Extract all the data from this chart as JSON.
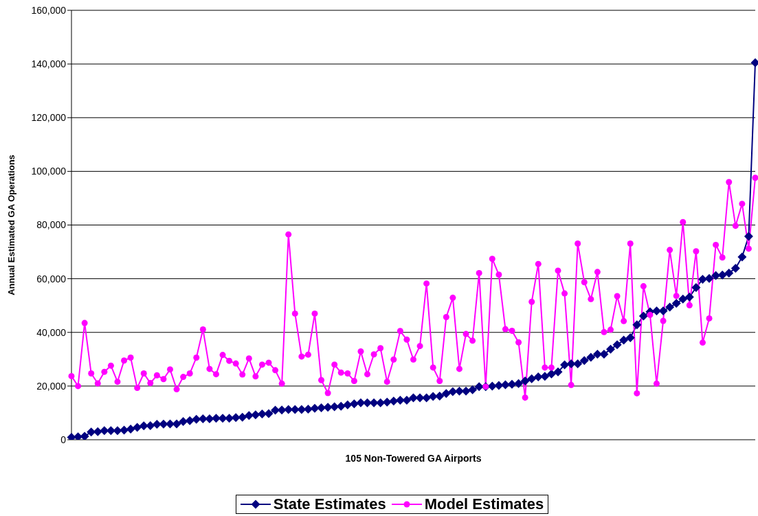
{
  "chart_data": {
    "type": "line",
    "xlabel": "105 Non-Towered GA Airports",
    "ylabel": "Annual Estimated GA Operations",
    "categories": [
      null,
      null,
      null,
      null,
      null,
      null,
      null,
      null,
      null,
      null,
      null,
      null,
      null,
      null,
      null,
      null,
      null,
      null,
      null,
      null,
      null,
      null,
      null,
      null,
      null,
      null,
      null,
      null,
      null,
      null,
      null,
      null,
      null,
      null,
      null,
      null,
      null,
      null,
      null,
      null,
      null,
      null,
      null,
      null,
      null,
      null,
      null,
      null,
      null,
      null,
      null,
      null,
      null,
      null,
      null,
      null,
      null,
      null,
      null,
      null,
      null,
      null,
      null,
      null,
      null,
      null,
      null,
      null,
      null,
      null,
      null,
      null,
      null,
      null,
      null,
      null,
      null,
      null,
      null,
      null,
      null,
      null,
      null,
      null,
      null,
      null,
      null,
      null,
      null,
      null,
      null,
      null,
      null,
      null,
      null,
      null,
      null,
      null,
      null,
      null,
      null,
      null,
      null,
      null,
      null
    ],
    "series": [
      {
        "name": "State Estimates",
        "color": "#000080",
        "marker": "diamond",
        "values": [
          900,
          1100,
          1250,
          2900,
          3000,
          3400,
          3400,
          3400,
          3600,
          4000,
          4600,
          5200,
          5250,
          5750,
          5800,
          5900,
          5900,
          6800,
          7100,
          7600,
          7800,
          7800,
          8000,
          8000,
          8000,
          8250,
          8400,
          9000,
          9250,
          9600,
          9750,
          11000,
          11100,
          11250,
          11250,
          11250,
          11400,
          11700,
          11900,
          12100,
          12300,
          12500,
          13000,
          13400,
          13750,
          13750,
          13750,
          13750,
          14000,
          14400,
          14750,
          14750,
          15600,
          15600,
          15600,
          16100,
          16250,
          17200,
          17900,
          18100,
          18100,
          18600,
          19800,
          19800,
          20000,
          20200,
          20500,
          20700,
          20900,
          21900,
          22750,
          23400,
          23600,
          24500,
          25250,
          27900,
          28300,
          28300,
          29500,
          30700,
          31900,
          31900,
          33700,
          35400,
          37100,
          38000,
          42800,
          46100,
          47700,
          48000,
          48000,
          49400,
          50800,
          52400,
          53200,
          56700,
          59800,
          60100,
          61200,
          61400,
          62100,
          63900,
          68100,
          75800,
          140500
        ]
      },
      {
        "name": "Model Estimates",
        "color": "#ff00ff",
        "marker": "circle",
        "values": [
          23700,
          20000,
          43500,
          24700,
          21000,
          25300,
          27600,
          21600,
          29500,
          30600,
          19300,
          24700,
          21100,
          24000,
          22600,
          26200,
          18800,
          23400,
          24700,
          30600,
          41100,
          26400,
          24400,
          31600,
          29400,
          28400,
          24300,
          30300,
          23600,
          28000,
          28700,
          25900,
          20900,
          76500,
          47000,
          31000,
          31700,
          47000,
          22200,
          17400,
          28000,
          25000,
          24700,
          21900,
          32900,
          24400,
          31800,
          34100,
          21600,
          29900,
          40500,
          37300,
          29900,
          34900,
          58200,
          26900,
          21900,
          45700,
          52900,
          26400,
          39400,
          36900,
          62100,
          19800,
          67400,
          61500,
          41200,
          40600,
          36300,
          15700,
          51400,
          65500,
          26900,
          26900,
          63000,
          54500,
          20400,
          73100,
          58700,
          52400,
          62500,
          40100,
          41000,
          53500,
          44200,
          73100,
          17300,
          57200,
          46500,
          20900,
          44300,
          70700,
          53600,
          81100,
          50100,
          70200,
          36200,
          45200,
          72600,
          67900,
          96000,
          79700,
          87900,
          71200,
          97600
        ]
      }
    ],
    "ylim": [
      0,
      160000
    ],
    "yticks": [
      {
        "value": 0,
        "label": "0"
      },
      {
        "value": 20000,
        "label": "20,000"
      },
      {
        "value": 40000,
        "label": "40,000"
      },
      {
        "value": 60000,
        "label": "60,000"
      },
      {
        "value": 80000,
        "label": "80,000"
      },
      {
        "value": 100000,
        "label": "100,000"
      },
      {
        "value": 120000,
        "label": "120,000"
      },
      {
        "value": 140000,
        "label": "140,000"
      },
      {
        "value": 160000,
        "label": "160,000"
      }
    ],
    "grid": "y",
    "legend": "bottom",
    "tick_labels": "y"
  }
}
